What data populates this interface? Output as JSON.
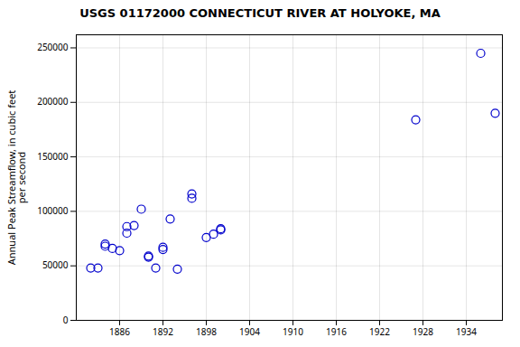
{
  "chart_data": {
    "type": "scatter",
    "title": "USGS 01172000 CONNECTICUT RIVER AT HOLYOKE, MA",
    "ylabel": "Annual Peak Streamflow, in cubic feet\nper second",
    "x": [
      1882,
      1883,
      1884,
      1884,
      1885,
      1886,
      1887,
      1887,
      1888,
      1889,
      1890,
      1890,
      1891,
      1892,
      1892,
      1893,
      1894,
      1896,
      1896,
      1898,
      1899,
      1900,
      1900,
      1927,
      1936,
      1938
    ],
    "values": [
      48000,
      48000,
      70000,
      68000,
      66000,
      64000,
      80000,
      86000,
      87000,
      102000,
      59000,
      58000,
      48000,
      67000,
      65000,
      93000,
      47000,
      116000,
      112000,
      76000,
      79000,
      84000,
      83000,
      184000,
      245000,
      190000
    ],
    "color": "#0000cc",
    "marker": "circle",
    "xlim": [
      1880,
      1939
    ],
    "ylim": [
      0,
      262000
    ],
    "xticks": [
      1886,
      1892,
      1898,
      1904,
      1910,
      1916,
      1922,
      1928,
      1934
    ],
    "yticks": [
      0,
      50000,
      100000,
      150000,
      200000,
      250000
    ],
    "grid": true
  }
}
